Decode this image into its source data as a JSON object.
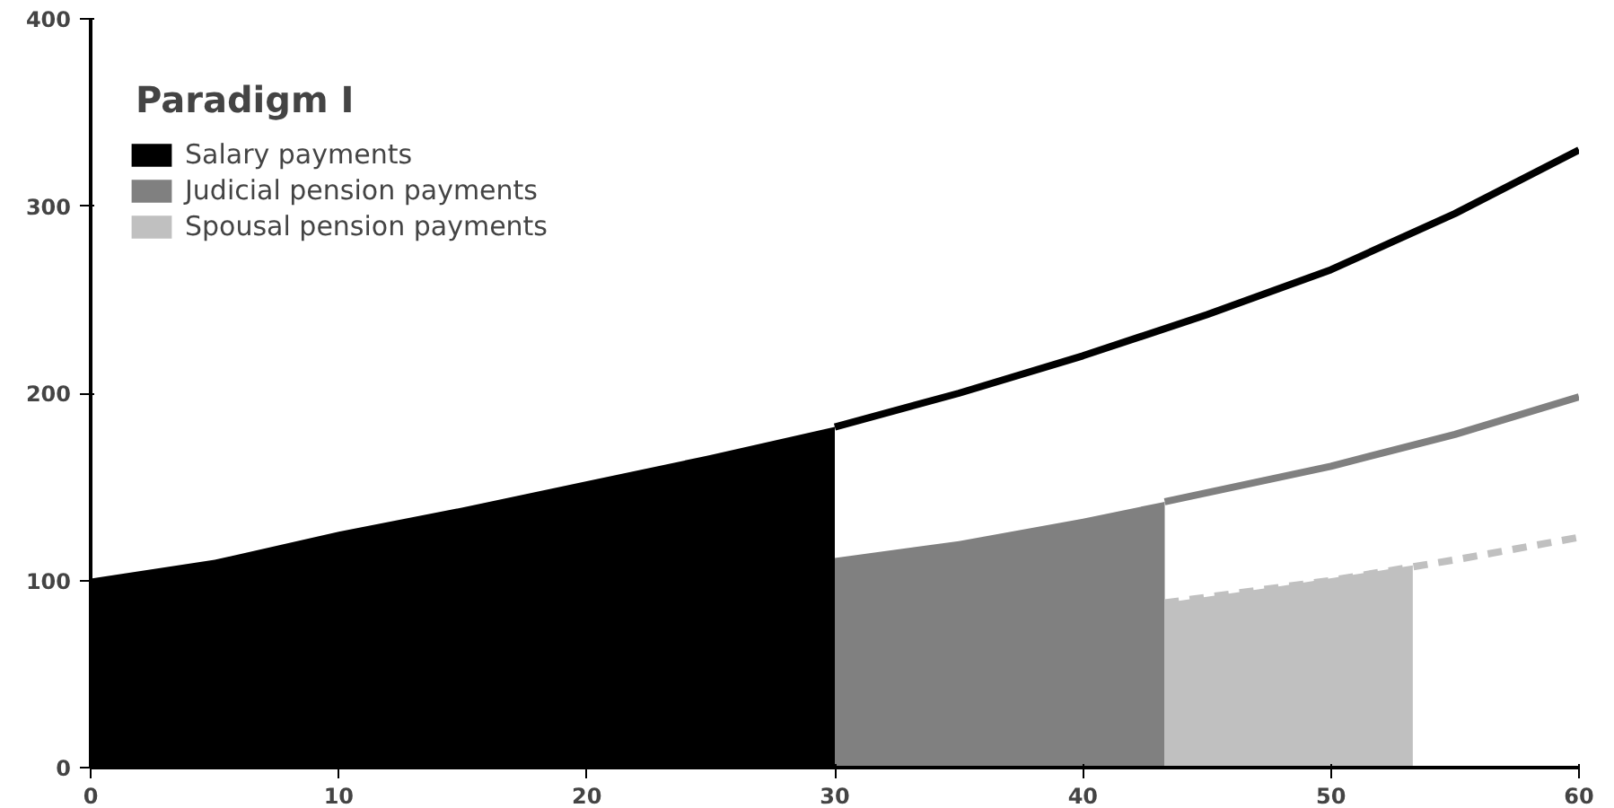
{
  "chart_data": {
    "type": "area",
    "title": "Paradigm I",
    "xlim": [
      0,
      60
    ],
    "xticks": [
      0,
      10,
      20,
      30,
      40,
      50,
      60
    ],
    "ylim": [
      0,
      400
    ],
    "yticks": [
      0,
      100,
      200,
      300,
      400
    ],
    "grid": false,
    "legend": "top left",
    "series": [
      {
        "name": "Salary payments",
        "color": "#000000",
        "x": [
          0,
          5,
          10,
          15,
          20,
          25,
          30
        ],
        "values": [
          101,
          111,
          126,
          139,
          153,
          167,
          182
        ]
      },
      {
        "type": "line",
        "color": "#000000",
        "x": [
          30,
          35,
          40,
          45,
          50,
          55,
          60
        ],
        "values": [
          182,
          200,
          220,
          242,
          266,
          296,
          330
        ]
      },
      {
        "name": "Judicial pension payments",
        "color": "#808080",
        "x": [
          30,
          35,
          40,
          43.3
        ],
        "values": [
          112,
          121,
          133,
          142
        ]
      },
      {
        "type": "line",
        "color": "#808080",
        "x": [
          43.3,
          50,
          55,
          60
        ],
        "values": [
          142,
          161,
          178,
          198
        ]
      },
      {
        "name": "Spousal pension payments",
        "color": "#c0c0c0",
        "x": [
          43.3,
          48,
          53.3
        ],
        "values": [
          88,
          97,
          108
        ]
      },
      {
        "type": "line",
        "color": "#c0c0c0",
        "line_style": "dashed",
        "x": [
          43.3,
          50,
          55,
          60
        ],
        "values": [
          88,
          100,
          111,
          123
        ]
      }
    ]
  }
}
